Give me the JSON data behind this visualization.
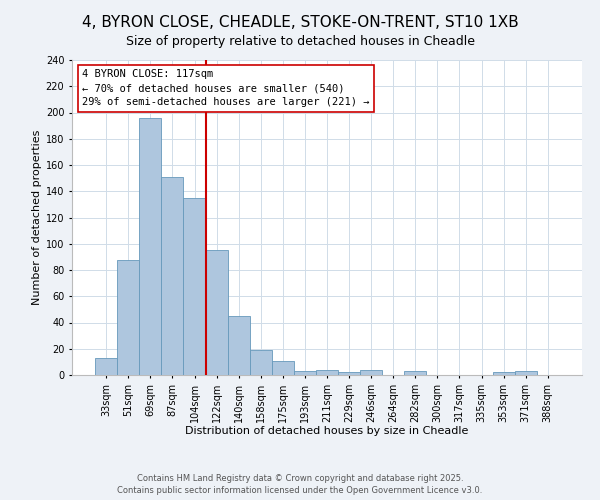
{
  "title": "4, BYRON CLOSE, CHEADLE, STOKE-ON-TRENT, ST10 1XB",
  "subtitle": "Size of property relative to detached houses in Cheadle",
  "xlabel": "Distribution of detached houses by size in Cheadle",
  "ylabel": "Number of detached properties",
  "bin_labels": [
    "33sqm",
    "51sqm",
    "69sqm",
    "87sqm",
    "104sqm",
    "122sqm",
    "140sqm",
    "158sqm",
    "175sqm",
    "193sqm",
    "211sqm",
    "229sqm",
    "246sqm",
    "264sqm",
    "282sqm",
    "300sqm",
    "317sqm",
    "335sqm",
    "353sqm",
    "371sqm",
    "388sqm"
  ],
  "bar_values": [
    13,
    88,
    196,
    151,
    135,
    95,
    45,
    19,
    11,
    3,
    4,
    2,
    4,
    0,
    3,
    0,
    0,
    0,
    2,
    3,
    0
  ],
  "bar_color": "#aec6de",
  "bar_edge_color": "#6699bb",
  "grid_color": "#d0dce8",
  "vline_color": "#cc0000",
  "annotation_title": "4 BYRON CLOSE: 117sqm",
  "annotation_line1": "← 70% of detached houses are smaller (540)",
  "annotation_line2": "29% of semi-detached houses are larger (221) →",
  "footer1": "Contains HM Land Registry data © Crown copyright and database right 2025.",
  "footer2": "Contains public sector information licensed under the Open Government Licence v3.0.",
  "ylim": [
    0,
    240
  ],
  "yticks": [
    0,
    20,
    40,
    60,
    80,
    100,
    120,
    140,
    160,
    180,
    200,
    220,
    240
  ],
  "fig_bg": "#eef2f7",
  "plot_bg": "#ffffff",
  "title_fontsize": 11,
  "subtitle_fontsize": 9,
  "axis_label_fontsize": 8,
  "tick_fontsize": 7,
  "footer_fontsize": 6,
  "ann_fontsize": 7.5
}
